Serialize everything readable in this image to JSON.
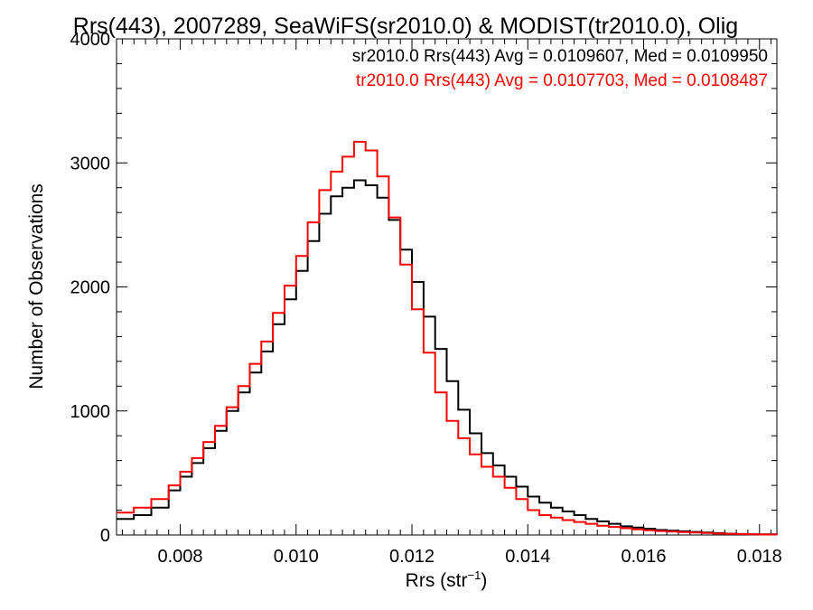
{
  "chart_data": {
    "type": "line",
    "title": "Rrs(443), 2007289, SeaWiFS(sr2010.0) & MODIST(tr2010.0), Olig",
    "xlabel": "Rrs (str",
    "xlabel_sup": "−1",
    "xlabel_end": ")",
    "ylabel": "Number of Observations",
    "xlim": [
      0.0069,
      0.0183
    ],
    "ylim": [
      0,
      4000
    ],
    "x_ticks": [
      0.008,
      0.01,
      0.012,
      0.014,
      0.016,
      0.018
    ],
    "x_tick_labels": [
      "0.008",
      "0.010",
      "0.012",
      "0.014",
      "0.016",
      "0.018"
    ],
    "y_ticks": [
      0,
      1000,
      2000,
      3000,
      4000
    ],
    "y_tick_labels": [
      "0",
      "1000",
      "2000",
      "3000",
      "4000"
    ],
    "grid": false,
    "legend_position": "top-right",
    "series": [
      {
        "name": "sr2010.0 Rrs(443) Avg = 0.0109607, Med = 0.0109950",
        "color": "#000000",
        "points": [
          [
            0.0069,
            130
          ],
          [
            0.0072,
            160
          ],
          [
            0.0075,
            220
          ],
          [
            0.0078,
            360
          ],
          [
            0.008,
            470
          ],
          [
            0.0082,
            580
          ],
          [
            0.0084,
            700
          ],
          [
            0.0086,
            840
          ],
          [
            0.0088,
            1000
          ],
          [
            0.009,
            1150
          ],
          [
            0.0092,
            1310
          ],
          [
            0.0094,
            1480
          ],
          [
            0.0096,
            1700
          ],
          [
            0.0098,
            1900
          ],
          [
            0.01,
            2130
          ],
          [
            0.0102,
            2370
          ],
          [
            0.0104,
            2590
          ],
          [
            0.0106,
            2730
          ],
          [
            0.0108,
            2800
          ],
          [
            0.011,
            2860
          ],
          [
            0.0112,
            2820
          ],
          [
            0.0114,
            2720
          ],
          [
            0.0116,
            2540
          ],
          [
            0.0118,
            2300
          ],
          [
            0.012,
            2040
          ],
          [
            0.0122,
            1760
          ],
          [
            0.0124,
            1500
          ],
          [
            0.0126,
            1240
          ],
          [
            0.0128,
            1010
          ],
          [
            0.013,
            820
          ],
          [
            0.0132,
            660
          ],
          [
            0.0134,
            560
          ],
          [
            0.0136,
            470
          ],
          [
            0.0138,
            390
          ],
          [
            0.014,
            310
          ],
          [
            0.0142,
            260
          ],
          [
            0.0144,
            220
          ],
          [
            0.0146,
            190
          ],
          [
            0.0148,
            160
          ],
          [
            0.015,
            130
          ],
          [
            0.0152,
            110
          ],
          [
            0.0154,
            90
          ],
          [
            0.0156,
            70
          ],
          [
            0.0158,
            60
          ],
          [
            0.016,
            50
          ],
          [
            0.0162,
            40
          ],
          [
            0.0164,
            35
          ],
          [
            0.0166,
            30
          ],
          [
            0.0168,
            25
          ],
          [
            0.017,
            20
          ],
          [
            0.0172,
            15
          ],
          [
            0.0174,
            10
          ],
          [
            0.0176,
            8
          ],
          [
            0.0178,
            6
          ],
          [
            0.018,
            5
          ],
          [
            0.0183,
            4
          ]
        ]
      },
      {
        "name": "tr2010.0 Rrs(443) Avg = 0.0107703, Med = 0.0108487",
        "color": "#ff0000",
        "points": [
          [
            0.0069,
            180
          ],
          [
            0.0072,
            220
          ],
          [
            0.0075,
            290
          ],
          [
            0.0078,
            400
          ],
          [
            0.008,
            510
          ],
          [
            0.0082,
            620
          ],
          [
            0.0084,
            750
          ],
          [
            0.0086,
            880
          ],
          [
            0.0088,
            1030
          ],
          [
            0.009,
            1200
          ],
          [
            0.0092,
            1380
          ],
          [
            0.0094,
            1560
          ],
          [
            0.0096,
            1790
          ],
          [
            0.0098,
            2010
          ],
          [
            0.01,
            2250
          ],
          [
            0.0102,
            2520
          ],
          [
            0.0104,
            2780
          ],
          [
            0.0106,
            2930
          ],
          [
            0.0108,
            3050
          ],
          [
            0.011,
            3170
          ],
          [
            0.0112,
            3100
          ],
          [
            0.0114,
            2890
          ],
          [
            0.0116,
            2560
          ],
          [
            0.0118,
            2180
          ],
          [
            0.012,
            1820
          ],
          [
            0.0122,
            1470
          ],
          [
            0.0124,
            1150
          ],
          [
            0.0126,
            920
          ],
          [
            0.0128,
            780
          ],
          [
            0.013,
            650
          ],
          [
            0.0132,
            550
          ],
          [
            0.0134,
            470
          ],
          [
            0.0136,
            380
          ],
          [
            0.0138,
            290
          ],
          [
            0.014,
            200
          ],
          [
            0.0142,
            160
          ],
          [
            0.0144,
            140
          ],
          [
            0.0146,
            120
          ],
          [
            0.0148,
            105
          ],
          [
            0.015,
            90
          ],
          [
            0.0152,
            75
          ],
          [
            0.0154,
            65
          ],
          [
            0.0156,
            55
          ],
          [
            0.0158,
            45
          ],
          [
            0.016,
            38
          ],
          [
            0.0162,
            32
          ],
          [
            0.0164,
            28
          ],
          [
            0.0166,
            24
          ],
          [
            0.0168,
            20
          ],
          [
            0.017,
            16
          ],
          [
            0.0172,
            12
          ],
          [
            0.0174,
            9
          ],
          [
            0.0176,
            7
          ],
          [
            0.0178,
            5
          ],
          [
            0.018,
            4
          ],
          [
            0.0183,
            3
          ]
        ]
      }
    ]
  }
}
